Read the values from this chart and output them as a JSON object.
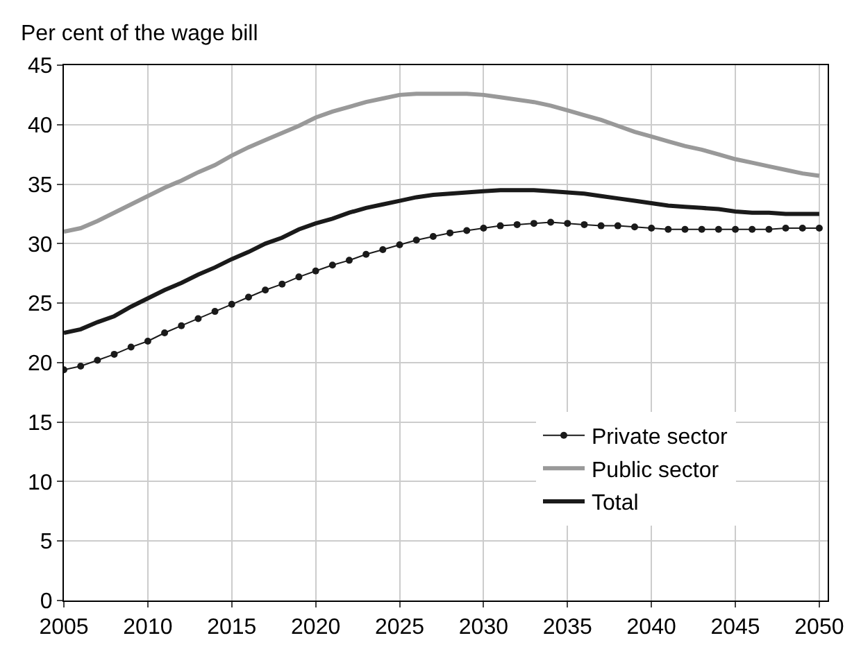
{
  "chart_data": {
    "type": "line",
    "ylabel": "Per cent of the wage bill",
    "x": [
      2005,
      2006,
      2007,
      2008,
      2009,
      2010,
      2011,
      2012,
      2013,
      2014,
      2015,
      2016,
      2017,
      2018,
      2019,
      2020,
      2021,
      2022,
      2023,
      2024,
      2025,
      2026,
      2027,
      2028,
      2029,
      2030,
      2031,
      2032,
      2033,
      2034,
      2035,
      2036,
      2037,
      2038,
      2039,
      2040,
      2041,
      2042,
      2043,
      2044,
      2045,
      2046,
      2047,
      2048,
      2049,
      2050
    ],
    "series": [
      {
        "name": "Private sector",
        "color": "#1a1a1a",
        "marker": "circle",
        "values": [
          19.4,
          19.7,
          20.2,
          20.7,
          21.3,
          21.8,
          22.5,
          23.1,
          23.7,
          24.3,
          24.9,
          25.5,
          26.1,
          26.6,
          27.2,
          27.7,
          28.2,
          28.6,
          29.1,
          29.5,
          29.9,
          30.3,
          30.6,
          30.9,
          31.1,
          31.3,
          31.5,
          31.6,
          31.7,
          31.8,
          31.7,
          31.6,
          31.5,
          31.5,
          31.4,
          31.3,
          31.2,
          31.2,
          31.2,
          31.2,
          31.2,
          31.2,
          31.2,
          31.3,
          31.3,
          31.3
        ]
      },
      {
        "name": "Public sector",
        "color": "#999999",
        "marker": "none",
        "values": [
          31.0,
          31.3,
          31.9,
          32.6,
          33.3,
          34.0,
          34.7,
          35.3,
          36.0,
          36.6,
          37.4,
          38.1,
          38.7,
          39.3,
          39.9,
          40.6,
          41.1,
          41.5,
          41.9,
          42.2,
          42.5,
          42.6,
          42.6,
          42.6,
          42.6,
          42.5,
          42.3,
          42.1,
          41.9,
          41.6,
          41.2,
          40.8,
          40.4,
          39.9,
          39.4,
          39.0,
          38.6,
          38.2,
          37.9,
          37.5,
          37.1,
          36.8,
          36.5,
          36.2,
          35.9,
          35.7
        ]
      },
      {
        "name": "Total",
        "color": "#1a1a1a",
        "marker": "none",
        "values": [
          22.5,
          22.8,
          23.4,
          23.9,
          24.7,
          25.4,
          26.1,
          26.7,
          27.4,
          28.0,
          28.7,
          29.3,
          30.0,
          30.5,
          31.2,
          31.7,
          32.1,
          32.6,
          33.0,
          33.3,
          33.6,
          33.9,
          34.1,
          34.2,
          34.3,
          34.4,
          34.5,
          34.5,
          34.5,
          34.4,
          34.3,
          34.2,
          34.0,
          33.8,
          33.6,
          33.4,
          33.2,
          33.1,
          33.0,
          32.9,
          32.7,
          32.6,
          32.6,
          32.5,
          32.5,
          32.5
        ]
      }
    ],
    "xlim": [
      2005,
      2050.5
    ],
    "xticks": [
      2005,
      2010,
      2015,
      2020,
      2025,
      2030,
      2035,
      2040,
      2045,
      2050
    ],
    "ylim": [
      0,
      45
    ],
    "yticks": [
      0,
      5,
      10,
      15,
      20,
      25,
      30,
      35,
      40,
      45
    ],
    "grid": true,
    "legend": "bottom right"
  }
}
